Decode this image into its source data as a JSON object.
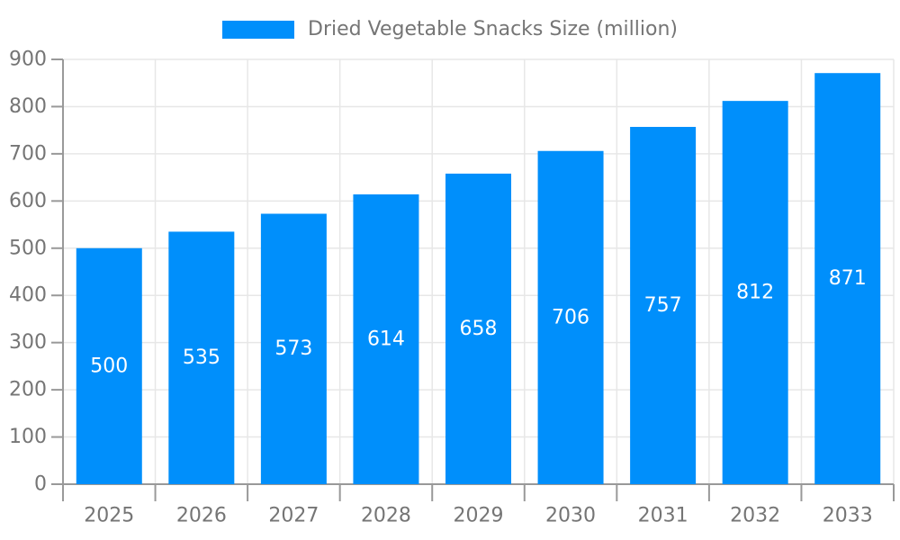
{
  "chart": {
    "legend_label": "Dried Vegetable Snacks Size (million)"
  },
  "colors": {
    "bar": "#008FFB",
    "axis": "#999999",
    "grid": "#e7e7e7",
    "tick_text": "#757575",
    "value_text": "#ffffff",
    "background": "#ffffff"
  },
  "chart_data": {
    "type": "bar",
    "title": "Dried Vegetable Snacks Size (million)",
    "categories": [
      "2025",
      "2026",
      "2027",
      "2028",
      "2029",
      "2030",
      "2031",
      "2032",
      "2033"
    ],
    "values": [
      500,
      535,
      573,
      614,
      658,
      706,
      757,
      812,
      871
    ],
    "xlabel": "",
    "ylabel": "",
    "ylim": [
      0,
      900
    ],
    "ytick_step": 100,
    "grid": true,
    "legend_position": "top-center",
    "value_label_position": "inside-center"
  }
}
